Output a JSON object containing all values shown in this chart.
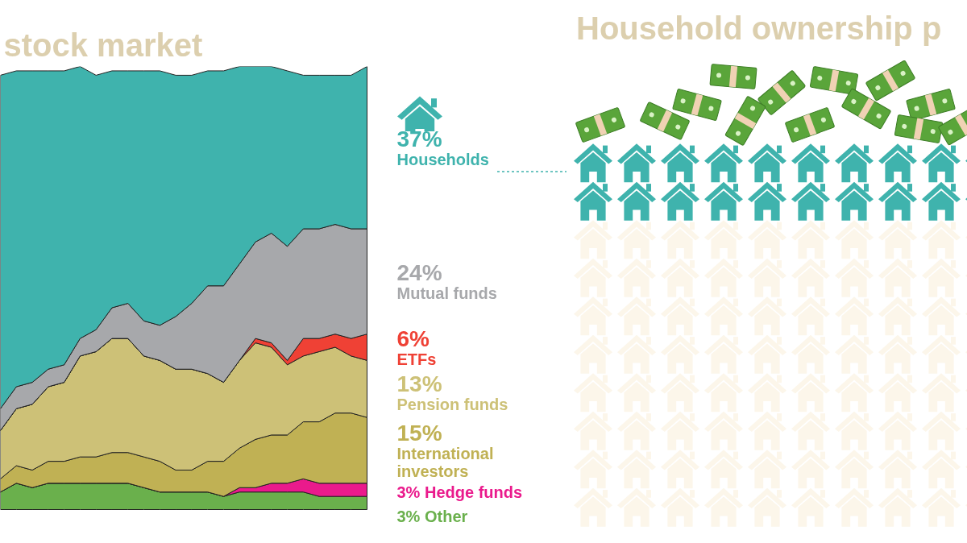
{
  "chart_data": {
    "type": "area",
    "title": "stock market",
    "stacked": true,
    "tick_labels": false,
    "legend": false,
    "grid": false,
    "annotations": [
      "Household ownership p"
    ],
    "categories": [
      null,
      null,
      null,
      null,
      null,
      null,
      null,
      null,
      null,
      null,
      null,
      null,
      null,
      null,
      null,
      null,
      null,
      null,
      null,
      null,
      null,
      null,
      null,
      null
    ],
    "series": [
      {
        "name": "Other",
        "color": "#6ab04c",
        "values": [
          4,
          6,
          5,
          6,
          6,
          6,
          6,
          6,
          6,
          5,
          4,
          4,
          4,
          4,
          3,
          4,
          4,
          4,
          4,
          4,
          3,
          3,
          3,
          3
        ],
        "value_labels": [
          null,
          null,
          null,
          null,
          null,
          null,
          null,
          null,
          null,
          null,
          null,
          null,
          null,
          null,
          null,
          null,
          null,
          null,
          null,
          null,
          null,
          null,
          null,
          "3%"
        ]
      },
      {
        "name": "Hedge funds",
        "color": "#ea1a8c",
        "values": [
          0,
          0,
          0,
          0,
          0,
          0,
          0,
          0,
          0,
          0,
          0,
          0,
          0,
          0,
          0,
          1,
          1,
          2,
          2,
          3,
          3,
          3,
          3,
          3
        ],
        "value_labels": [
          null,
          null,
          null,
          null,
          null,
          null,
          null,
          null,
          null,
          null,
          null,
          null,
          null,
          null,
          null,
          null,
          null,
          null,
          null,
          null,
          null,
          null,
          null,
          "3%"
        ]
      },
      {
        "name": "International investors",
        "color": "#c0b154",
        "values": [
          3,
          4,
          4,
          5,
          5,
          6,
          6,
          7,
          7,
          7,
          7,
          5,
          5,
          7,
          8,
          9,
          11,
          11,
          11,
          13,
          14,
          16,
          16,
          15
        ],
        "value_labels": [
          null,
          null,
          null,
          null,
          null,
          null,
          null,
          null,
          null,
          null,
          null,
          null,
          null,
          null,
          null,
          null,
          null,
          null,
          null,
          null,
          null,
          null,
          null,
          "15%"
        ]
      },
      {
        "name": "Pension funds",
        "color": "#cdc177",
        "values": [
          11,
          13,
          15,
          17,
          18,
          23,
          24,
          26,
          26,
          23,
          23,
          23,
          23,
          20,
          18,
          20,
          22,
          20,
          16,
          15,
          16,
          15,
          13,
          13
        ],
        "value_labels": [
          null,
          null,
          null,
          null,
          null,
          null,
          null,
          null,
          null,
          null,
          null,
          null,
          null,
          null,
          null,
          null,
          null,
          null,
          null,
          null,
          null,
          null,
          null,
          "13%"
        ]
      },
      {
        "name": "ETFs",
        "color": "#ef4135",
        "values": [
          0,
          0,
          0,
          0,
          0,
          0,
          0,
          0,
          0,
          0,
          0,
          0,
          0,
          0,
          0,
          0,
          1,
          1,
          1,
          4,
          3,
          3,
          4,
          6
        ],
        "value_labels": [
          null,
          null,
          null,
          null,
          null,
          null,
          null,
          null,
          null,
          null,
          null,
          null,
          null,
          null,
          null,
          null,
          null,
          null,
          null,
          null,
          null,
          null,
          null,
          "6%"
        ]
      },
      {
        "name": "Mutual funds",
        "color": "#a7a8ab",
        "values": [
          5,
          5,
          5,
          4,
          4,
          4,
          5,
          7,
          8,
          8,
          8,
          12,
          15,
          20,
          22,
          22,
          22,
          25,
          26,
          25,
          25,
          25,
          25,
          24
        ],
        "value_labels": [
          null,
          null,
          null,
          null,
          null,
          null,
          null,
          null,
          null,
          null,
          null,
          null,
          null,
          null,
          null,
          null,
          null,
          null,
          null,
          null,
          null,
          null,
          null,
          "24%"
        ]
      },
      {
        "name": "Households",
        "color": "#3fb3ad",
        "values": [
          76,
          72,
          71,
          68,
          67,
          62,
          58,
          54,
          53,
          57,
          58,
          55,
          52,
          49,
          49,
          45,
          40,
          38,
          40,
          35,
          35,
          34,
          35,
          37
        ],
        "value_labels": [
          null,
          null,
          null,
          null,
          null,
          null,
          null,
          null,
          null,
          null,
          null,
          null,
          null,
          null,
          null,
          null,
          null,
          null,
          null,
          null,
          null,
          null,
          null,
          "37%"
        ]
      }
    ]
  }
}
